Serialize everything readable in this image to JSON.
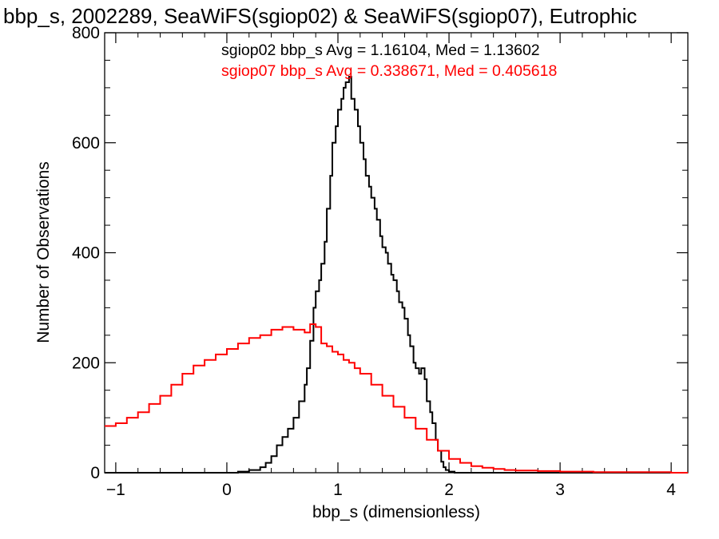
{
  "chart_data": {
    "type": "line",
    "title": "bbp_s, 2002289, SeaWiFS(sgiop02) & SeaWiFS(sgiop07), Eutrophic",
    "xlabel": "bbp_s (dimensionless)",
    "ylabel": "Number of Observations",
    "xlim": [
      -1.1,
      4.15
    ],
    "ylim": [
      0,
      800
    ],
    "x_ticks": [
      -1,
      0,
      1,
      2,
      3,
      4
    ],
    "x_tick_labels": [
      "−1",
      "0",
      "1",
      "2",
      "3",
      "4"
    ],
    "y_ticks": [
      0,
      200,
      400,
      600,
      800
    ],
    "y_tick_labels": [
      "0",
      "200",
      "400",
      "600",
      "800"
    ],
    "grid": false,
    "style": "histogram-step",
    "annotations": [
      "sgiop02 bbp_s Avg = 1.16104, Med = 1.13602",
      "sgiop07 bbp_s Avg = 0.338671, Med = 0.405618"
    ],
    "series": [
      {
        "name": "sgiop02",
        "color": "#000000",
        "x": [
          -1.1,
          -0.5,
          0.0,
          0.1,
          0.2,
          0.3,
          0.35,
          0.4,
          0.45,
          0.5,
          0.55,
          0.6,
          0.65,
          0.7,
          0.72,
          0.75,
          0.78,
          0.8,
          0.83,
          0.85,
          0.88,
          0.9,
          0.93,
          0.95,
          0.98,
          1.0,
          1.03,
          1.05,
          1.07,
          1.1,
          1.12,
          1.15,
          1.18,
          1.2,
          1.23,
          1.25,
          1.28,
          1.3,
          1.33,
          1.35,
          1.38,
          1.4,
          1.43,
          1.45,
          1.48,
          1.5,
          1.53,
          1.55,
          1.58,
          1.6,
          1.63,
          1.65,
          1.68,
          1.7,
          1.73,
          1.75,
          1.78,
          1.8,
          1.83,
          1.85,
          1.88,
          1.9,
          1.93,
          1.95,
          1.97,
          2.0,
          2.05,
          2.1,
          4.15
        ],
        "values": [
          0,
          0,
          0,
          2,
          5,
          10,
          18,
          30,
          50,
          65,
          80,
          100,
          130,
          160,
          190,
          240,
          300,
          330,
          350,
          380,
          420,
          480,
          540,
          600,
          630,
          660,
          680,
          700,
          710,
          720,
          680,
          660,
          630,
          600,
          570,
          540,
          520,
          500,
          480,
          460,
          430,
          410,
          400,
          380,
          360,
          350,
          330,
          310,
          300,
          280,
          250,
          230,
          200,
          190,
          180,
          190,
          170,
          130,
          110,
          90,
          60,
          40,
          20,
          10,
          5,
          2,
          0,
          0,
          0
        ]
      },
      {
        "name": "sgiop07",
        "color": "#ff0000",
        "x": [
          -1.1,
          -1.0,
          -0.9,
          -0.8,
          -0.7,
          -0.6,
          -0.5,
          -0.4,
          -0.3,
          -0.2,
          -0.1,
          0.0,
          0.1,
          0.2,
          0.3,
          0.4,
          0.5,
          0.6,
          0.7,
          0.75,
          0.8,
          0.85,
          0.9,
          0.95,
          1.0,
          1.05,
          1.1,
          1.15,
          1.2,
          1.3,
          1.4,
          1.5,
          1.6,
          1.7,
          1.8,
          1.9,
          2.0,
          2.1,
          2.2,
          2.3,
          2.4,
          2.5,
          2.6,
          2.8,
          3.0,
          3.3,
          3.6,
          4.0,
          4.15
        ],
        "values": [
          85,
          90,
          100,
          110,
          125,
          140,
          160,
          180,
          195,
          205,
          215,
          225,
          235,
          245,
          250,
          260,
          265,
          260,
          255,
          270,
          265,
          235,
          230,
          220,
          215,
          205,
          200,
          190,
          180,
          160,
          140,
          120,
          100,
          80,
          60,
          40,
          25,
          18,
          12,
          9,
          7,
          5,
          4,
          3,
          2,
          1,
          1,
          0,
          0
        ]
      }
    ]
  }
}
